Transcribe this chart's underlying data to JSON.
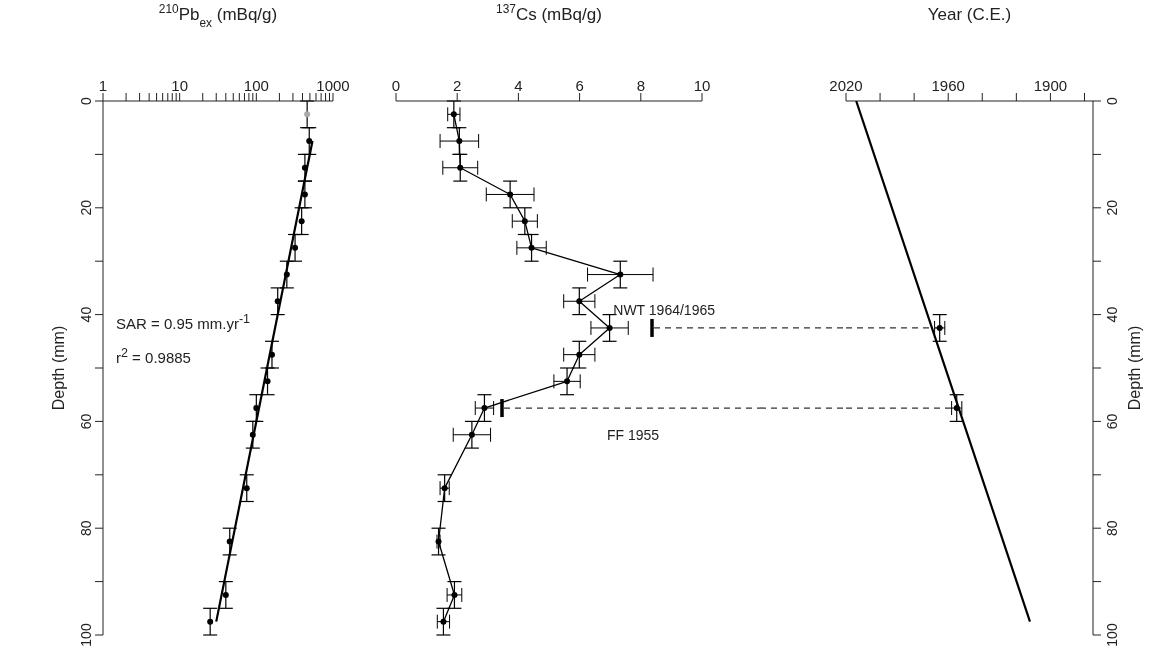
{
  "chart_data": [
    {
      "type": "scatter",
      "xlabel": "$^{210}$Pb$_{ex}$ (mBq/g)",
      "ylabel": "Depth (mm)",
      "log": "x",
      "xlim": [
        1,
        1000
      ],
      "xticks": [
        1,
        {
          "value": 2,
          "label": null
        },
        {
          "value": 3,
          "label": null
        },
        {
          "value": 4,
          "label": null
        },
        {
          "value": 5,
          "label": null
        },
        {
          "value": 6,
          "label": null
        },
        {
          "value": 7,
          "label": null
        },
        {
          "value": 8,
          "label": null
        },
        {
          "value": 9,
          "label": null
        },
        10,
        {
          "value": 20,
          "label": null
        },
        {
          "value": 30,
          "label": null
        },
        {
          "value": 40,
          "label": null
        },
        {
          "value": 50,
          "label": null
        },
        {
          "value": 60,
          "label": null
        },
        {
          "value": 70,
          "label": null
        },
        {
          "value": 80,
          "label": null
        },
        {
          "value": 90,
          "label": null
        },
        100,
        {
          "value": 200,
          "label": null
        },
        {
          "value": 300,
          "label": null
        },
        {
          "value": 400,
          "label": null
        },
        {
          "value": 500,
          "label": null
        },
        {
          "value": 600,
          "label": null
        },
        {
          "value": 700,
          "label": null
        },
        {
          "value": 800,
          "label": null
        },
        {
          "value": 900,
          "label": null
        },
        1000
      ],
      "ylim": [
        100,
        0
      ],
      "yticks": [
        0,
        {
          "value": 10,
          "label": null
        },
        20,
        {
          "value": 30,
          "label": null
        },
        40,
        {
          "value": 50,
          "label": null
        },
        60,
        {
          "value": 70,
          "label": null
        },
        80,
        {
          "value": 90,
          "label": null
        },
        100
      ],
      "annotations": [
        "SAR = 0.95 mm.yr$^{-1}$",
        "r$^{2}$ = 0.9885"
      ],
      "series": [
        {
          "marker": "circle",
          "color": "#000000",
          "colors": [
            "#aaaaaa",
            "#000000",
            "#000000",
            "#000000",
            "#000000",
            "#000000",
            "#000000",
            "#000000",
            "#000000",
            "#000000",
            "#000000",
            "#000000",
            "#000000",
            "#000000",
            "#000000",
            "#000000"
          ],
          "x": [
            460,
            490,
            430,
            430,
            390,
            320,
            250,
            190,
            160,
            140,
            100,
            90,
            75,
            45,
            40,
            25
          ],
          "values": [
            2.5,
            7.5,
            12.5,
            17.5,
            22.5,
            27.5,
            32.5,
            37.5,
            47.5,
            52.5,
            57.5,
            62.5,
            72.5,
            82.5,
            92.5,
            97.5
          ],
          "errors": [
            2.5,
            2.5,
            2.5,
            2.5,
            2.5,
            2.5,
            2.5,
            2.5,
            2.5,
            2.5,
            2.5,
            2.5,
            2.5,
            2.5,
            2.5,
            2.5
          ]
        },
        {
          "type": "line",
          "marker": "none",
          "color": "#000000",
          "x": [
            540,
            30
          ],
          "values": [
            7.5,
            97.5
          ]
        }
      ]
    },
    {
      "type": "line",
      "xlabel": "$^{137}$Cs (mBq/g)",
      "xlim": [
        0,
        10
      ],
      "xticks": [
        0,
        2,
        4,
        6,
        8,
        10
      ],
      "ylim": [
        100,
        0
      ],
      "tick_labels": "x",
      "ref_lines": [
        {
          "axis": "y",
          "value": 42.5,
          "label": "NWT 1964/1965",
          "line_style": "dashed"
        },
        {
          "axis": "y",
          "value": 57.5,
          "label": "FF 1955",
          "line_style": "dashed"
        }
      ],
      "series": [
        {
          "marker": "circle",
          "color": "#000000",
          "x": [
            1.89,
            2.07,
            2.1,
            3.73,
            4.21,
            4.43,
            7.33,
            5.99,
            6.98,
            5.99,
            5.59,
            2.89,
            2.48,
            1.59,
            1.39,
            1.91,
            1.55
          ],
          "values": [
            2.5,
            7.5,
            12.5,
            17.5,
            22.5,
            27.5,
            32.5,
            37.5,
            42.5,
            47.5,
            52.5,
            57.5,
            62.5,
            72.5,
            82.5,
            92.5,
            97.5
          ],
          "xerrors": [
            0.2,
            0.63,
            0.57,
            0.78,
            0.41,
            0.48,
            1.07,
            0.51,
            0.61,
            0.51,
            0.43,
            0.3,
            0.61,
            0.15,
            0.05,
            0.24,
            0.2
          ],
          "errors": [
            2.5,
            2.5,
            2.5,
            2.5,
            2.5,
            2.5,
            2.5,
            2.5,
            2.5,
            2.5,
            2.5,
            2.5,
            2.5,
            2.5,
            2.5,
            2.5,
            2.5
          ]
        }
      ]
    },
    {
      "type": "line",
      "xlabel": "Year (C.E.)",
      "y2label": "Depth (mm)",
      "xlim": [
        2020,
        1875
      ],
      "xticks": [
        2020,
        {
          "value": 2000,
          "label": null
        },
        {
          "value": 1980,
          "label": null
        },
        1960,
        {
          "value": 1940,
          "label": null
        },
        {
          "value": 1920,
          "label": null
        },
        1900,
        {
          "value": 1880,
          "label": null
        }
      ],
      "y2lim": [
        100,
        0
      ],
      "y2ticks": [
        0,
        {
          "value": 10,
          "label": null
        },
        20,
        {
          "value": 30,
          "label": null
        },
        40,
        {
          "value": 50,
          "label": null
        },
        60,
        {
          "value": 70,
          "label": null
        },
        80,
        {
          "value": 90,
          "label": null
        },
        100
      ],
      "ref_lines": [
        {
          "axis": "y2",
          "value": 42.5,
          "line_style": "dashed"
        },
        {
          "axis": "y2",
          "value": 57.5,
          "line_style": "dashed"
        }
      ],
      "series": [
        {
          "marker": "none",
          "axis": "y2",
          "color": "#000000",
          "x": [
            2014,
            1912
          ],
          "values": [
            0,
            97.5
          ]
        },
        {
          "type": "scatter",
          "marker": "circle",
          "axis": "y2",
          "color": "#000000",
          "x": [
            1965,
            1955
          ],
          "values": [
            42.5,
            57.5
          ],
          "errors": [
            2.5,
            2.5
          ],
          "xerrors": [
            3,
            3
          ]
        }
      ]
    }
  ]
}
